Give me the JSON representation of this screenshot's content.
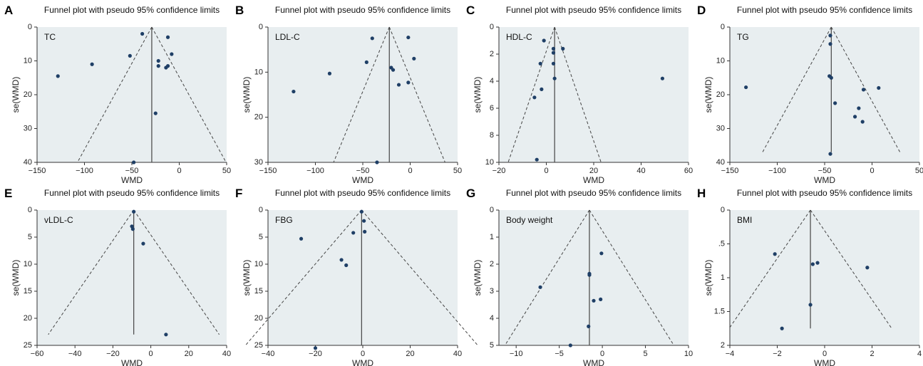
{
  "chart_data": [
    {
      "type": "scatter",
      "panel": "A",
      "title": "Funnel plot with pseudo 95% confidence limits",
      "annotation": "TC",
      "xlabel": "WMD",
      "ylabel": "se(WMD)",
      "xlim": [
        -150,
        50
      ],
      "ylim": [
        0,
        40
      ],
      "y_reversed": true,
      "xticks": [
        -150,
        -100,
        -50,
        0,
        50
      ],
      "xtick_labels": [
        "−150",
        "−100",
        "−50",
        "0",
        "50"
      ],
      "yticks": [
        0,
        10,
        20,
        30,
        40
      ],
      "ytick_labels": [
        "0",
        "10",
        "20",
        "30",
        "40"
      ],
      "pooled": -29,
      "funnel_se_max": 40,
      "points": [
        {
          "x": -39,
          "y": 2
        },
        {
          "x": -12,
          "y": 3
        },
        {
          "x": -52,
          "y": 8.5
        },
        {
          "x": -8,
          "y": 8
        },
        {
          "x": -92,
          "y": 11
        },
        {
          "x": -22,
          "y": 10
        },
        {
          "x": -22,
          "y": 11.5
        },
        {
          "x": -14,
          "y": 12
        },
        {
          "x": -12,
          "y": 11.5
        },
        {
          "x": -128,
          "y": 14.5
        },
        {
          "x": -25,
          "y": 25.5
        },
        {
          "x": -48,
          "y": 40
        }
      ]
    },
    {
      "type": "scatter",
      "panel": "B",
      "title": "Funnel plot with pseudo 95% confidence limits",
      "annotation": "LDL-C",
      "xlabel": "WMD",
      "ylabel": "se(WMD)",
      "xlim": [
        -150,
        50
      ],
      "ylim": [
        0,
        30
      ],
      "y_reversed": true,
      "xticks": [
        -150,
        -100,
        -50,
        0,
        50
      ],
      "xtick_labels": [
        "−150",
        "−100",
        "−50",
        "0",
        "50"
      ],
      "yticks": [
        0,
        10,
        20,
        30
      ],
      "ytick_labels": [
        "0",
        "10",
        "20",
        "30"
      ],
      "pooled": -22,
      "funnel_se_max": 30,
      "points": [
        {
          "x": -40,
          "y": 2.5
        },
        {
          "x": -2,
          "y": 2.3
        },
        {
          "x": 4,
          "y": 7
        },
        {
          "x": -46,
          "y": 7.8
        },
        {
          "x": -20,
          "y": 9
        },
        {
          "x": -18,
          "y": 9.5
        },
        {
          "x": -85,
          "y": 10.3
        },
        {
          "x": -12,
          "y": 12.8
        },
        {
          "x": -2,
          "y": 12.3
        },
        {
          "x": -123,
          "y": 14.3
        },
        {
          "x": -35,
          "y": 30
        }
      ]
    },
    {
      "type": "scatter",
      "panel": "C",
      "title": "Funnel plot with pseudo 95% confidence limits",
      "annotation": "HDL-C",
      "xlabel": "WMD",
      "ylabel": "se(WMD)",
      "xlim": [
        -20,
        60
      ],
      "ylim": [
        0,
        10
      ],
      "y_reversed": true,
      "xticks": [
        -20,
        0,
        20,
        40,
        60
      ],
      "xtick_labels": [
        "−20",
        "0",
        "20",
        "40",
        "60"
      ],
      "yticks": [
        0,
        2,
        4,
        6,
        8,
        10
      ],
      "ytick_labels": [
        "0",
        "2",
        "4",
        "6",
        "8",
        "10"
      ],
      "pooled": 3.5,
      "funnel_se_max": 10,
      "points": [
        {
          "x": -1,
          "y": 1
        },
        {
          "x": 3,
          "y": 1.6
        },
        {
          "x": 7,
          "y": 1.6
        },
        {
          "x": 3,
          "y": 1.9
        },
        {
          "x": -2.5,
          "y": 2.7
        },
        {
          "x": 3,
          "y": 2.7
        },
        {
          "x": 3.5,
          "y": 3.8
        },
        {
          "x": 49,
          "y": 3.8
        },
        {
          "x": -2,
          "y": 4.6
        },
        {
          "x": -5,
          "y": 5.2
        },
        {
          "x": -4,
          "y": 9.8
        }
      ]
    },
    {
      "type": "scatter",
      "panel": "D",
      "title": "Funnel plot with pseudo 95% confidence limits",
      "annotation": "TG",
      "xlabel": "WMD",
      "ylabel": "se(WMD)",
      "xlim": [
        -150,
        50
      ],
      "ylim": [
        0,
        40
      ],
      "y_reversed": true,
      "xticks": [
        -150,
        -100,
        -50,
        0,
        50
      ],
      "xtick_labels": [
        "−150",
        "−100",
        "−50",
        "0",
        "50"
      ],
      "yticks": [
        0,
        10,
        20,
        30,
        40
      ],
      "ytick_labels": [
        "0",
        "10",
        "20",
        "30",
        "40"
      ],
      "pooled": -43,
      "funnel_se_max": 37,
      "points": [
        {
          "x": -44,
          "y": 2.5
        },
        {
          "x": -44,
          "y": 5
        },
        {
          "x": -45,
          "y": 14.5
        },
        {
          "x": -43,
          "y": 15
        },
        {
          "x": -133,
          "y": 17.8
        },
        {
          "x": 7,
          "y": 18
        },
        {
          "x": -9,
          "y": 18.5
        },
        {
          "x": -39,
          "y": 22.5
        },
        {
          "x": -14,
          "y": 24
        },
        {
          "x": -18,
          "y": 26.5
        },
        {
          "x": -10,
          "y": 28
        },
        {
          "x": -44,
          "y": 37.5
        }
      ]
    },
    {
      "type": "scatter",
      "panel": "E",
      "title": "Funnel plot with pseudo 95% confidence limits",
      "annotation": "vLDL-C",
      "xlabel": "WMD",
      "ylabel": "se(WMD)",
      "xlim": [
        -60,
        40
      ],
      "ylim": [
        0,
        25
      ],
      "y_reversed": true,
      "xticks": [
        -60,
        -40,
        -20,
        0,
        20,
        40
      ],
      "xtick_labels": [
        "−60",
        "−40",
        "−20",
        "0",
        "20",
        "40"
      ],
      "yticks": [
        0,
        5,
        10,
        15,
        20,
        25
      ],
      "ytick_labels": [
        "0",
        "5",
        "10",
        "15",
        "20",
        "25"
      ],
      "pooled": -9,
      "funnel_se_max": 23,
      "points": [
        {
          "x": -9,
          "y": 0.3
        },
        {
          "x": -10,
          "y": 3
        },
        {
          "x": -9.5,
          "y": 3.5
        },
        {
          "x": -4,
          "y": 6.2
        },
        {
          "x": 8,
          "y": 23
        }
      ]
    },
    {
      "type": "scatter",
      "panel": "F",
      "title": "Funnel plot with pseudo 95% confidence limits",
      "annotation": "FBG",
      "xlabel": "WMD",
      "ylabel": "se(WMD)",
      "xlim": [
        -40,
        40
      ],
      "ylim": [
        0,
        25
      ],
      "y_reversed": true,
      "xticks": [
        -40,
        -20,
        0,
        20,
        40
      ],
      "xtick_labels": [
        "−40",
        "−20",
        "0",
        "20",
        "40"
      ],
      "yticks": [
        0,
        5,
        10,
        15,
        20,
        25
      ],
      "ytick_labels": [
        "0",
        "5",
        "10",
        "15",
        "20",
        "25"
      ],
      "pooled": -0.5,
      "funnel_se_max": 25,
      "points": [
        {
          "x": -0.5,
          "y": 0.3
        },
        {
          "x": 0.5,
          "y": 2
        },
        {
          "x": -4,
          "y": 4.2
        },
        {
          "x": 0.8,
          "y": 4
        },
        {
          "x": -26,
          "y": 5.3
        },
        {
          "x": -9,
          "y": 9.2
        },
        {
          "x": -7,
          "y": 10.2
        },
        {
          "x": -20,
          "y": 25.5
        }
      ]
    },
    {
      "type": "scatter",
      "panel": "G",
      "title": "Funnel plot with pseudo 95% confidence limits",
      "annotation": "Body weight",
      "xlabel": "WMD",
      "ylabel": "se(WMD)",
      "xlim": [
        -12,
        10
      ],
      "ylim": [
        0,
        5
      ],
      "y_reversed": true,
      "xticks": [
        -10,
        -5,
        0,
        5,
        10
      ],
      "xtick_labels": [
        "−10",
        "−5",
        "0",
        "5",
        "10"
      ],
      "yticks": [
        0,
        1,
        2,
        3,
        4,
        5
      ],
      "ytick_labels": [
        "0",
        "1",
        "2",
        "3",
        "4",
        "5"
      ],
      "pooled": -1.5,
      "funnel_se_max": 5,
      "points": [
        {
          "x": -0.1,
          "y": 1.6
        },
        {
          "x": -1.5,
          "y": 2.35
        },
        {
          "x": -1.5,
          "y": 2.4
        },
        {
          "x": -7.2,
          "y": 2.85
        },
        {
          "x": -0.2,
          "y": 3.3
        },
        {
          "x": -1,
          "y": 3.35
        },
        {
          "x": -1.6,
          "y": 4.3
        },
        {
          "x": -3.7,
          "y": 5
        }
      ]
    },
    {
      "type": "scatter",
      "panel": "H",
      "title": "Funnel plot with pseudo 95% confidence limits",
      "annotation": "BMI",
      "xlabel": "WMD",
      "ylabel": "se(WMD)",
      "xlim": [
        -4,
        4
      ],
      "ylim": [
        0,
        2
      ],
      "y_reversed": true,
      "xticks": [
        -4,
        -2,
        0,
        2,
        4
      ],
      "xtick_labels": [
        "−4",
        "−2",
        "0",
        "2",
        "4"
      ],
      "yticks": [
        0,
        0.5,
        1,
        1.5,
        2
      ],
      "ytick_labels": [
        "0",
        ".5",
        "1",
        "1.5",
        "2"
      ],
      "pooled": -0.6,
      "funnel_se_max": 1.75,
      "points": [
        {
          "x": -2.1,
          "y": 0.65
        },
        {
          "x": -0.5,
          "y": 0.8
        },
        {
          "x": -0.3,
          "y": 0.78
        },
        {
          "x": 1.8,
          "y": 0.85
        },
        {
          "x": -0.6,
          "y": 1.4
        },
        {
          "x": -1.8,
          "y": 1.75
        }
      ]
    }
  ]
}
